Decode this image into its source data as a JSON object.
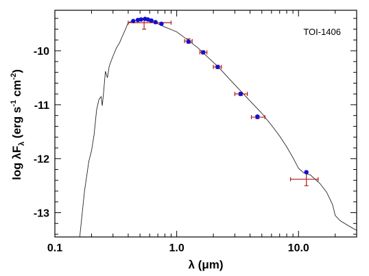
{
  "chart_data": {
    "type": "scatter",
    "annotation": "TOI-1406",
    "xlabel_prefix": "λ",
    "xlabel_unit": "μm",
    "ylabel_main": "log λF",
    "ylabel_sub": "λ",
    "ylabel_unit_open": " (erg s",
    "ylabel_unit_sup1": "-1",
    "ylabel_unit_mid": " cm",
    "ylabel_unit_sup2": "-2",
    "ylabel_unit_close": ")",
    "x_scale": "log",
    "xlim": [
      0.1,
      30
    ],
    "ylim": [
      -13.45,
      -9.25
    ],
    "x_ticks": [
      {
        "value": 0.1,
        "label": "0.1"
      },
      {
        "value": 1.0,
        "label": "1.0"
      },
      {
        "value": 10.0,
        "label": "10.0"
      }
    ],
    "y_ticks": [
      {
        "value": -10,
        "label": "-10"
      },
      {
        "value": -11,
        "label": "-11"
      },
      {
        "value": -12,
        "label": "-12"
      },
      {
        "value": -13,
        "label": "-13"
      }
    ],
    "grid": false,
    "colors": {
      "model": "#222222",
      "points": "#1010d0",
      "errorbars": "#b01818"
    },
    "model_curve": [
      [
        0.16,
        -13.45
      ],
      [
        0.175,
        -12.6
      ],
      [
        0.19,
        -12.05
      ],
      [
        0.2,
        -11.85
      ],
      [
        0.21,
        -11.55
      ],
      [
        0.22,
        -11.1
      ],
      [
        0.23,
        -10.9
      ],
      [
        0.24,
        -10.85
      ],
      [
        0.245,
        -11.02
      ],
      [
        0.25,
        -10.82
      ],
      [
        0.26,
        -10.38
      ],
      [
        0.27,
        -10.5
      ],
      [
        0.28,
        -10.28
      ],
      [
        0.3,
        -10.1
      ],
      [
        0.32,
        -9.95
      ],
      [
        0.34,
        -9.85
      ],
      [
        0.36,
        -9.72
      ],
      [
        0.38,
        -9.6
      ],
      [
        0.4,
        -9.48
      ],
      [
        0.42,
        -9.46
      ],
      [
        0.45,
        -9.44
      ],
      [
        0.5,
        -9.42
      ],
      [
        0.55,
        -9.43
      ],
      [
        0.6,
        -9.46
      ],
      [
        0.7,
        -9.5
      ],
      [
        0.8,
        -9.56
      ],
      [
        1.0,
        -9.65
      ],
      [
        1.2,
        -9.78
      ],
      [
        1.5,
        -9.95
      ],
      [
        1.8,
        -10.12
      ],
      [
        2.2,
        -10.3
      ],
      [
        2.7,
        -10.52
      ],
      [
        3.3,
        -10.73
      ],
      [
        4.0,
        -10.93
      ],
      [
        5.0,
        -11.16
      ],
      [
        6.0,
        -11.38
      ],
      [
        7.0,
        -11.58
      ],
      [
        8.0,
        -11.78
      ],
      [
        9.0,
        -11.98
      ],
      [
        10.0,
        -12.18
      ],
      [
        11.0,
        -12.26
      ],
      [
        12.5,
        -12.3
      ],
      [
        15.0,
        -12.46
      ],
      [
        17.0,
        -12.62
      ],
      [
        19.0,
        -12.85
      ],
      [
        20.0,
        -13.05
      ],
      [
        22.0,
        -13.15
      ],
      [
        26.0,
        -13.25
      ],
      [
        30.0,
        -13.33
      ]
    ],
    "photometry": [
      {
        "x": 0.44,
        "y": -9.45
      },
      {
        "x": 0.48,
        "y": -9.43
      },
      {
        "x": 0.51,
        "y": -9.42
      },
      {
        "x": 0.55,
        "y": -9.41
      },
      {
        "x": 0.58,
        "y": -9.42
      },
      {
        "x": 0.62,
        "y": -9.44
      },
      {
        "x": 0.67,
        "y": -9.47
      },
      {
        "x": 0.75,
        "y": -9.5
      },
      {
        "x": 1.25,
        "y": -9.83
      },
      {
        "x": 1.65,
        "y": -10.03
      },
      {
        "x": 2.17,
        "y": -10.3
      },
      {
        "x": 3.35,
        "y": -10.8
      },
      {
        "x": 4.6,
        "y": -11.22
      },
      {
        "x": 11.6,
        "y": -12.25
      }
    ],
    "errorbars": [
      {
        "x": 0.54,
        "y": -9.48,
        "xlo": 0.4,
        "xhi": 0.9,
        "ylo": -9.6,
        "yhi": -9.42
      },
      {
        "x": 1.25,
        "y": -9.82,
        "xlo": 1.16,
        "xhi": 1.34,
        "ylo": -9.86,
        "yhi": -9.78
      },
      {
        "x": 1.65,
        "y": -10.03,
        "xlo": 1.55,
        "xhi": 1.77,
        "ylo": -10.06,
        "yhi": -10.0
      },
      {
        "x": 2.17,
        "y": -10.3,
        "xlo": 2.0,
        "xhi": 2.33,
        "ylo": -10.33,
        "yhi": -10.27
      },
      {
        "x": 3.35,
        "y": -10.8,
        "xlo": 3.0,
        "xhi": 3.8,
        "ylo": -10.83,
        "yhi": -10.77
      },
      {
        "x": 4.6,
        "y": -11.23,
        "xlo": 4.1,
        "xhi": 5.3,
        "ylo": -11.26,
        "yhi": -11.2
      },
      {
        "x": 11.6,
        "y": -12.38,
        "xlo": 8.6,
        "xhi": 14.5,
        "ylo": -12.5,
        "yhi": -12.26
      }
    ]
  }
}
